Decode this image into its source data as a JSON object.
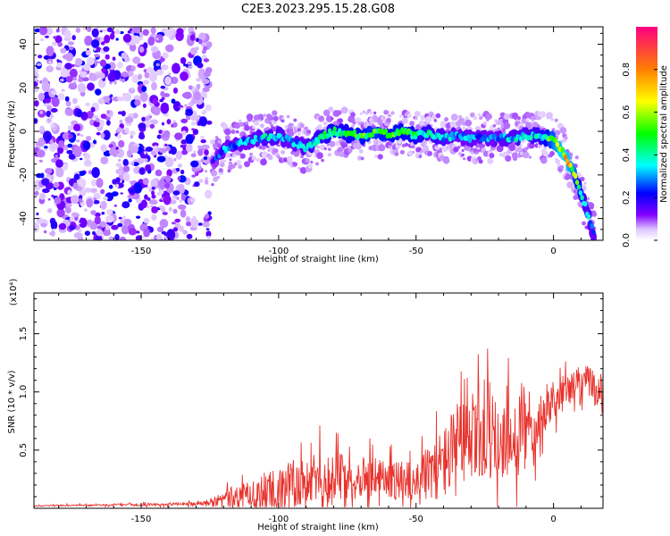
{
  "figure_title": "C2E3.2023.295.15.28.G08",
  "chart_data": [
    {
      "type": "heatmap",
      "title": "C2E3.2023.295.15.28.G08",
      "xlabel": "Height of straight line (km)",
      "ylabel": "Frequency (Hz)",
      "xlim": [
        -189,
        18
      ],
      "ylim": [
        -50,
        48
      ],
      "x_ticks": [
        -150,
        -100,
        -50,
        0
      ],
      "x_tick_labels": [
        "-150",
        "-100",
        "-50",
        "0"
      ],
      "y_ticks": [
        -40,
        -20,
        0,
        20,
        40
      ],
      "y_tick_labels": [
        "-40",
        "-20",
        "0",
        "20",
        "40"
      ],
      "grid": false,
      "colorbar": {
        "label": "Normalized spectral amplitude",
        "range": [
          0,
          1
        ],
        "ticks": [
          0,
          0.2,
          0.4,
          0.6,
          0.8
        ],
        "tick_labels": [
          "0.0",
          "0.2",
          "0.4",
          "0.6",
          "0.8"
        ],
        "colors": [
          "#ffffff",
          "#e0c8ff",
          "#8000ff",
          "#0000ff",
          "#00ffff",
          "#00ff00",
          "#ffff00",
          "#ff8000",
          "#ff0080"
        ]
      },
      "ridge": {
        "x": [
          -124,
          -120,
          -115,
          -110,
          -105,
          -100,
          -95,
          -90,
          -85,
          -80,
          -75,
          -70,
          -65,
          -60,
          -55,
          -50,
          -45,
          -40,
          -35,
          -30,
          -25,
          -20,
          -15,
          -10,
          -5,
          0,
          3,
          6,
          9,
          12,
          15
        ],
        "y": [
          -14,
          -8,
          -6,
          -4,
          -3,
          -2,
          -5,
          -8,
          -3,
          0,
          -1,
          -2,
          -1,
          -1,
          0,
          -2,
          -1,
          -3,
          -2,
          -3,
          -3,
          -3,
          -3,
          -2,
          -2,
          -4,
          -9,
          -15,
          -24,
          -36,
          -49
        ],
        "amplitude": [
          0.2,
          0.3,
          0.3,
          0.3,
          0.35,
          0.35,
          0.3,
          0.35,
          0.4,
          0.45,
          0.45,
          0.5,
          0.55,
          0.5,
          0.5,
          0.45,
          0.4,
          0.35,
          0.3,
          0.3,
          0.3,
          0.3,
          0.35,
          0.35,
          0.4,
          0.6,
          0.75,
          0.7,
          0.5,
          0.35,
          0.3
        ]
      },
      "noise_region": {
        "x": [
          -189,
          -125
        ],
        "amplitude": 0.15
      }
    },
    {
      "type": "line",
      "xlabel": "Height of straight line (km)",
      "ylabel": "SNR (10 * v/v)",
      "y_multiplier": "(x10⁴)",
      "xlim": [
        -189,
        18
      ],
      "ylim": [
        0,
        18500
      ],
      "x_ticks": [
        -150,
        -100,
        -50,
        0
      ],
      "x_tick_labels": [
        "-150",
        "-100",
        "-50",
        "0"
      ],
      "y_ticks": [
        5000,
        10000,
        15000
      ],
      "y_tick_labels": [
        "0.5",
        "1.0",
        "1.5"
      ],
      "grid": false,
      "series": [
        {
          "color": "#e8332d",
          "x": [
            -189,
            -180,
            -170,
            -160,
            -150,
            -140,
            -130,
            -125,
            -120,
            -115,
            -110,
            -105,
            -100,
            -95,
            -90,
            -85,
            -80,
            -75,
            -70,
            -65,
            -60,
            -55,
            -50,
            -45,
            -40,
            -35,
            -30,
            -25,
            -22,
            -20,
            -15,
            -12,
            -10,
            -5,
            0,
            5,
            10,
            15,
            18
          ],
          "values": [
            200,
            250,
            250,
            300,
            300,
            350,
            400,
            500,
            800,
            1000,
            1200,
            1400,
            1600,
            1800,
            2200,
            2500,
            2600,
            2600,
            2700,
            2600,
            2500,
            2400,
            2500,
            3000,
            4000,
            5000,
            6000,
            6500,
            7000,
            6000,
            6000,
            7000,
            6500,
            8000,
            9500,
            10000,
            11000,
            10500,
            10000
          ],
          "peak_amplitude": [
            50,
            80,
            100,
            120,
            150,
            150,
            200,
            300,
            1200,
            1500,
            1800,
            2200,
            3000,
            3500,
            3500,
            3000,
            3000,
            3000,
            2500,
            2500,
            2500,
            2500,
            2500,
            3500,
            4500,
            6000,
            5500,
            7000,
            6000,
            5000,
            5500,
            9000,
            5000,
            3000,
            2500,
            2000,
            2000,
            2500,
            2000
          ]
        }
      ]
    }
  ]
}
